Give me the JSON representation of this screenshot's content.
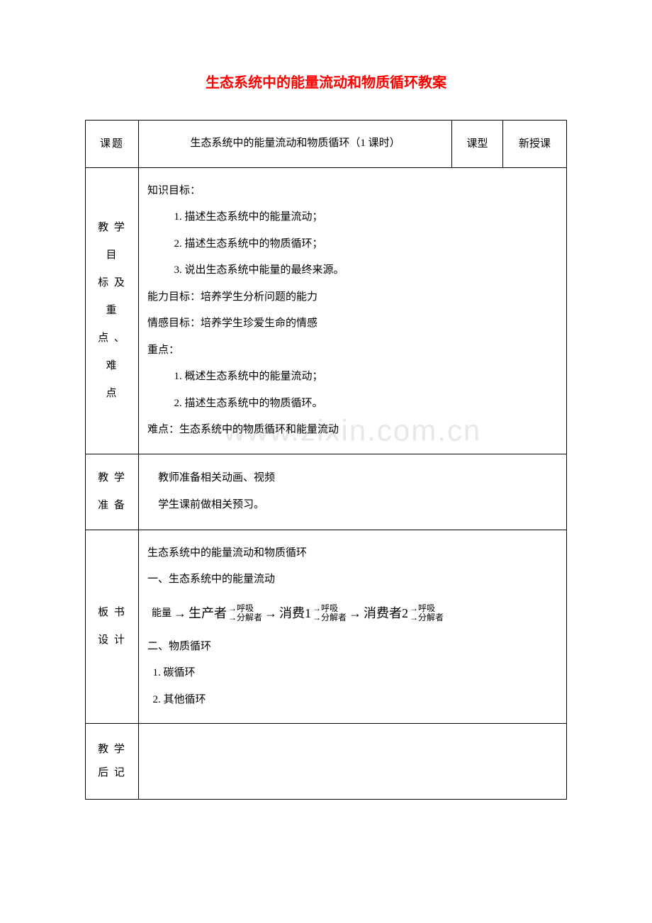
{
  "title": "生态系统中的能量流动和物质循环教案",
  "row1": {
    "label": "课题",
    "topic": "生态系统中的能量流动和物质循环（1 课时）",
    "type_label": "课型",
    "type_value": "新授课"
  },
  "objectives": {
    "label": "教学目标及重点、难点",
    "knowledge_heading": "知识目标：",
    "k1": "1. 描述生态系统中的能量流动；",
    "k2": "2. 描述生态系统中的物质循环；",
    "k3": "3. 说出生态系统中能量的最终来源。",
    "ability": "能力目标：培养学生分析问题的能力",
    "emotion": "情感目标：培养学生珍爱生命的情感",
    "key_heading": "重点：",
    "key1": "1. 概述生态系统中的能量流动；",
    "key2": "2. 描述生态系统中的物质循环。",
    "difficulty": "难点：生态系统中的物质循环和能量流动"
  },
  "prep": {
    "label": "教学准备",
    "line1": "教师准备相关动画、视频",
    "line2": "学生课前做相关预习。"
  },
  "board": {
    "label": "板书设计",
    "line1": "生态系统中的能量流动和物质循环",
    "line2": "一、生态系统中的能量流动",
    "flow": {
      "energy": "能量",
      "producer": "生产者",
      "consumer1": "消费1",
      "consumer2": "消费者2",
      "resp": "→呼吸",
      "decomp": "→分解者"
    },
    "line4": "二、物质循环",
    "line5": "1. 碳循环",
    "line6": "2. 其他循环"
  },
  "postnote": {
    "label": "教学后记"
  },
  "colors": {
    "title": "#ff0000",
    "text": "#000000",
    "border": "#000000",
    "watermark": "#e8e8e8",
    "background": "#ffffff"
  },
  "watermark_text": "www.zixin.com.cn"
}
